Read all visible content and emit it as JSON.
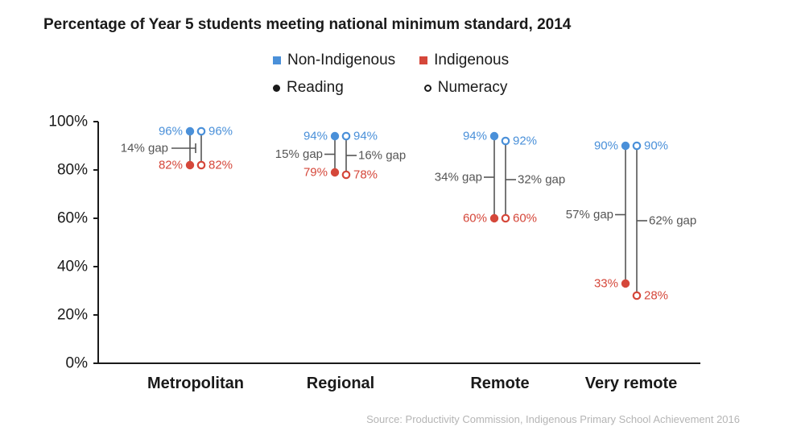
{
  "title": "Percentage of Year 5 students meeting national minimum standard, 2014",
  "legend": {
    "groups": [
      {
        "label": "Non-Indigenous",
        "marker": "square",
        "color": "#4a90d9"
      },
      {
        "label": "Indigenous",
        "marker": "square",
        "color": "#d5473a"
      }
    ],
    "subjects": [
      {
        "label": "Reading",
        "marker": "filled-circle"
      },
      {
        "label": "Numeracy",
        "marker": "open-circle"
      }
    ]
  },
  "source": "Source: Productivity Commission, Indigenous Primary School Achievement 2016",
  "colors": {
    "non_indigenous": "#4a90d9",
    "indigenous": "#d5473a",
    "gap": "#555555",
    "axis": "#1a1a1a"
  },
  "chart_data": {
    "type": "dumbbell",
    "title": "Percentage of Year 5 students meeting national minimum standard, 2014",
    "ylim": [
      0,
      100
    ],
    "yticks": [
      0,
      20,
      40,
      60,
      80,
      100
    ],
    "ytick_labels": [
      "0%",
      "20%",
      "40%",
      "60%",
      "80%",
      "100%"
    ],
    "categories": [
      "Metropolitan",
      "Regional",
      "Remote",
      "Very remote"
    ],
    "series": [
      {
        "name": "Non-Indigenous Reading",
        "values": [
          96,
          94,
          94,
          90
        ]
      },
      {
        "name": "Indigenous Reading",
        "values": [
          82,
          79,
          60,
          33
        ]
      },
      {
        "name": "Non-Indigenous Numeracy",
        "values": [
          96,
          94,
          92,
          90
        ]
      },
      {
        "name": "Indigenous Numeracy",
        "values": [
          82,
          78,
          60,
          28
        ]
      }
    ],
    "points": [
      {
        "category": "Metropolitan",
        "reading": {
          "non": 96,
          "ind": 82
        },
        "numeracy": {
          "non": 96,
          "ind": 82
        },
        "labels": {
          "rn": "96%",
          "ri": "82%",
          "nn": "96%",
          "ni": "82%"
        },
        "gaps": {
          "combined": "14% gap"
        }
      },
      {
        "category": "Regional",
        "reading": {
          "non": 94,
          "ind": 79
        },
        "numeracy": {
          "non": 94,
          "ind": 78
        },
        "labels": {
          "rn": "94%",
          "ri": "79%",
          "nn": "94%",
          "ni": "78%"
        },
        "gaps": {
          "reading": "15% gap",
          "numeracy": "16% gap"
        }
      },
      {
        "category": "Remote",
        "reading": {
          "non": 94,
          "ind": 60
        },
        "numeracy": {
          "non": 92,
          "ind": 60
        },
        "labels": {
          "rn": "94%",
          "ri": "60%",
          "nn": "92%",
          "ni": "60%"
        },
        "gaps": {
          "reading": "34% gap",
          "numeracy": "32% gap"
        }
      },
      {
        "category": "Very remote",
        "reading": {
          "non": 90,
          "ind": 33
        },
        "numeracy": {
          "non": 90,
          "ind": 28
        },
        "labels": {
          "rn": "90%",
          "ri": "33%",
          "nn": "90%",
          "ni": "28%"
        },
        "gaps": {
          "reading": "57% gap",
          "numeracy": "62% gap"
        }
      }
    ]
  }
}
